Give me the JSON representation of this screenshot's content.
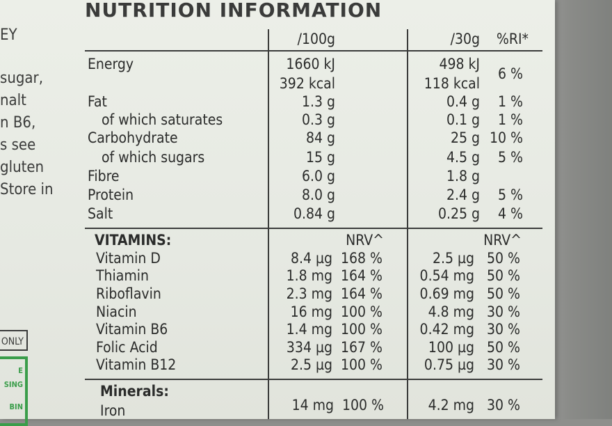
{
  "title": "NUTRITION INFORMATION",
  "side_text": [
    "sugar,",
    "nalt",
    "n B6,",
    "s see",
    "gluten",
    "Store in"
  ],
  "side_top": "EY",
  "only_label": "ONLY",
  "green_box_text": [
    "E",
    "SING",
    "BIN"
  ],
  "header": {
    "per100": "/100g",
    "per30": "/30g",
    "ri": "%RI*"
  },
  "nutrients": [
    {
      "name": "Energy",
      "v100": "1660 kJ",
      "v30": "498 kJ",
      "ri": "6 %"
    },
    {
      "name": "",
      "v100": "392 kcal",
      "v30": "118 kcal",
      "ri": ""
    },
    {
      "name": "Fat",
      "v100": "1.3 g",
      "v30": "0.4 g",
      "ri": "1 %"
    },
    {
      "name": "of which saturates",
      "v100": "0.3 g",
      "v30": "0.1 g",
      "ri": "1 %"
    },
    {
      "name": "Carbohydrate",
      "v100": "84 g",
      "v30": "25 g",
      "ri": "10 %"
    },
    {
      "name": "of which sugars",
      "v100": "15 g",
      "v30": "4.5 g",
      "ri": "5 %"
    },
    {
      "name": "Fibre",
      "v100": "6.0 g",
      "v30": "1.8 g",
      "ri": ""
    },
    {
      "name": "Protein",
      "v100": "8.0 g",
      "v30": "2.4 g",
      "ri": "5 %"
    },
    {
      "name": "Salt",
      "v100": "0.84 g",
      "v30": "0.25 g",
      "ri": "4 %"
    }
  ],
  "vitamins_label": "VITAMINS:",
  "nrv_label": "NRV^",
  "vitamins": [
    {
      "name": "Vitamin D",
      "v100": "8.4 µg",
      "nrv100": "168 %",
      "v30": "2.5 µg",
      "nrv30": "50 %"
    },
    {
      "name": "Thiamin",
      "v100": "1.8 mg",
      "nrv100": "164 %",
      "v30": "0.54 mg",
      "nrv30": "50 %"
    },
    {
      "name": "Riboflavin",
      "v100": "2.3 mg",
      "nrv100": "164 %",
      "v30": "0.69 mg",
      "nrv30": "50 %"
    },
    {
      "name": "Niacin",
      "v100": "16 mg",
      "nrv100": "100 %",
      "v30": "4.8 mg",
      "nrv30": "30 %"
    },
    {
      "name": "Vitamin B6",
      "v100": "1.4 mg",
      "nrv100": "100 %",
      "v30": "0.42 mg",
      "nrv30": "30 %"
    },
    {
      "name": "Folic Acid",
      "v100": "334 µg",
      "nrv100": "167 %",
      "v30": "100 µg",
      "nrv30": "50 %"
    },
    {
      "name": "Vitamin B12",
      "v100": "2.5 µg",
      "nrv100": "100 %",
      "v30": "0.75 µg",
      "nrv30": "30 %"
    }
  ],
  "minerals_label": "Minerals:",
  "minerals": [
    {
      "name": "Iron",
      "v100": "14 mg",
      "nrv100": "100 %",
      "v30": "4.2 mg",
      "nrv30": "30 %"
    }
  ]
}
